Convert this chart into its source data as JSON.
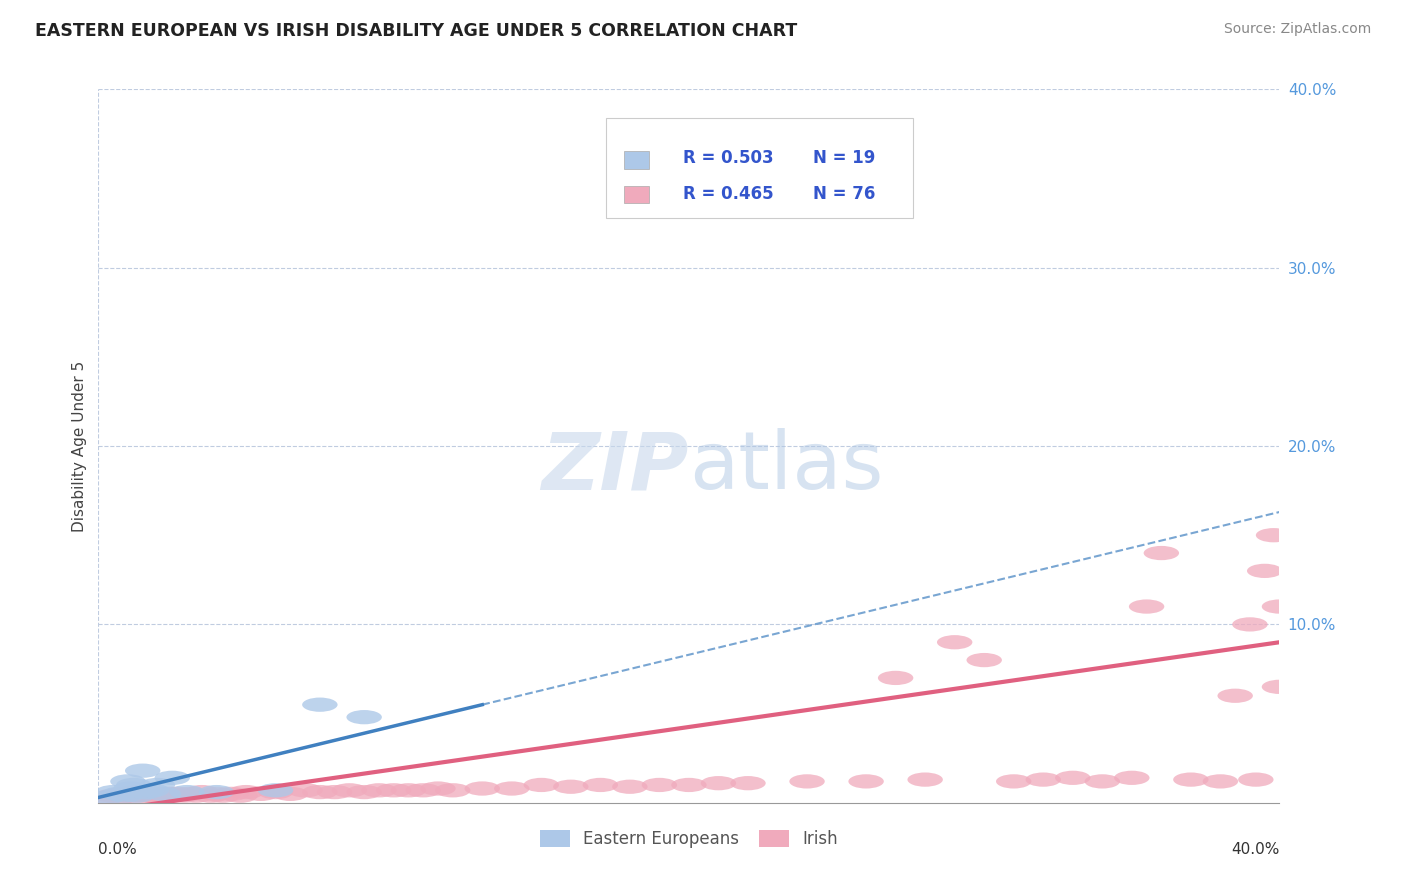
{
  "title": "EASTERN EUROPEAN VS IRISH DISABILITY AGE UNDER 5 CORRELATION CHART",
  "source": "Source: ZipAtlas.com",
  "ylabel": "Disability Age Under 5",
  "xlim": [
    0.0,
    0.4
  ],
  "ylim": [
    0.0,
    0.4
  ],
  "eastern_R": 0.503,
  "eastern_N": 19,
  "irish_R": 0.465,
  "irish_N": 76,
  "eastern_color": "#adc8e8",
  "irish_color": "#f0aabc",
  "eastern_line_color": "#4080c0",
  "irish_line_color": "#e06080",
  "legend_text_color": "#3355cc",
  "background_color": "#ffffff",
  "grid_color": "#c0cce0",
  "eastern_x": [
    0.003,
    0.005,
    0.007,
    0.009,
    0.01,
    0.011,
    0.012,
    0.013,
    0.015,
    0.016,
    0.018,
    0.02,
    0.022,
    0.025,
    0.03,
    0.04,
    0.06,
    0.075,
    0.09
  ],
  "eastern_y": [
    0.003,
    0.006,
    0.005,
    0.004,
    0.012,
    0.008,
    0.01,
    0.004,
    0.018,
    0.006,
    0.007,
    0.01,
    0.005,
    0.014,
    0.006,
    0.006,
    0.007,
    0.055,
    0.048
  ],
  "irish_x": [
    0.003,
    0.005,
    0.007,
    0.008,
    0.009,
    0.01,
    0.011,
    0.012,
    0.013,
    0.014,
    0.015,
    0.016,
    0.017,
    0.018,
    0.019,
    0.02,
    0.022,
    0.024,
    0.025,
    0.027,
    0.029,
    0.031,
    0.033,
    0.035,
    0.038,
    0.04,
    0.042,
    0.045,
    0.048,
    0.05,
    0.055,
    0.06,
    0.065,
    0.07,
    0.075,
    0.08,
    0.085,
    0.09,
    0.095,
    0.1,
    0.105,
    0.11,
    0.115,
    0.12,
    0.13,
    0.14,
    0.15,
    0.16,
    0.17,
    0.18,
    0.19,
    0.2,
    0.21,
    0.22,
    0.24,
    0.26,
    0.27,
    0.28,
    0.29,
    0.3,
    0.31,
    0.32,
    0.33,
    0.34,
    0.35,
    0.355,
    0.36,
    0.37,
    0.38,
    0.385,
    0.39,
    0.392,
    0.395,
    0.398,
    0.4,
    0.4
  ],
  "irish_y": [
    0.003,
    0.004,
    0.003,
    0.005,
    0.004,
    0.005,
    0.004,
    0.006,
    0.004,
    0.005,
    0.004,
    0.005,
    0.004,
    0.005,
    0.004,
    0.005,
    0.004,
    0.005,
    0.004,
    0.005,
    0.004,
    0.005,
    0.004,
    0.006,
    0.004,
    0.005,
    0.004,
    0.005,
    0.004,
    0.006,
    0.005,
    0.006,
    0.005,
    0.007,
    0.006,
    0.006,
    0.007,
    0.006,
    0.007,
    0.007,
    0.007,
    0.007,
    0.008,
    0.007,
    0.008,
    0.008,
    0.01,
    0.009,
    0.01,
    0.009,
    0.01,
    0.01,
    0.011,
    0.011,
    0.012,
    0.012,
    0.07,
    0.013,
    0.09,
    0.08,
    0.012,
    0.013,
    0.014,
    0.012,
    0.014,
    0.11,
    0.14,
    0.013,
    0.012,
    0.06,
    0.1,
    0.013,
    0.13,
    0.15,
    0.11,
    0.065
  ],
  "eastern_line_x": [
    0.0,
    0.13
  ],
  "eastern_line_y": [
    0.003,
    0.055
  ],
  "irish_line_x": [
    0.0,
    0.4
  ],
  "irish_line_y": [
    -0.005,
    0.09
  ]
}
